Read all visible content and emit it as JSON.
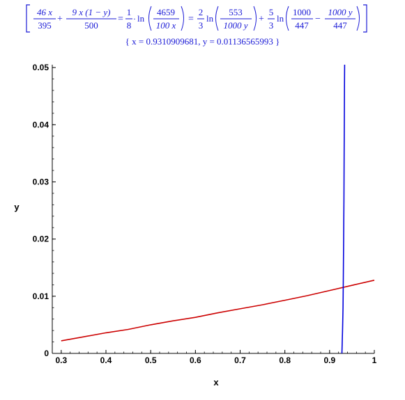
{
  "equation": {
    "lhs": {
      "term1": {
        "num": "46 x",
        "den": "395"
      },
      "plus1": "+",
      "term2": {
        "num": "9 x (1 − y)",
        "den": "500"
      }
    },
    "eq1": "=",
    "mid": {
      "num": "1",
      "den": "8",
      "dot": "·",
      "ln": "ln",
      "arg_num": "4659",
      "arg_den": "100 x"
    },
    "eq2": "=",
    "rhs": {
      "c1": {
        "num": "2",
        "den": "3"
      },
      "ln1": "ln",
      "arg1": {
        "num": "553",
        "den": "1000 y"
      },
      "plus": "+",
      "c2": {
        "num": "5",
        "den": "3"
      },
      "ln2": "ln",
      "arg2a": {
        "num": "1000",
        "den": "447"
      },
      "minus": "−",
      "arg2b": {
        "num": "1000 y",
        "den": "447"
      }
    }
  },
  "solution_text": "{ x = 0.9310909681, y = 0.01136565993 }",
  "chart_data": {
    "type": "line",
    "xlabel": "x",
    "ylabel": "y",
    "xlim": [
      0.28,
      1.0
    ],
    "ylim": [
      0,
      0.0505
    ],
    "x_ticks": [
      0.3,
      0.4,
      0.5,
      0.6,
      0.7,
      0.8,
      0.9,
      1
    ],
    "x_tick_labels": [
      "0.3",
      "0.4",
      "0.5",
      "0.6",
      "0.7",
      "0.8",
      "0.9",
      "1"
    ],
    "y_ticks": [
      0,
      0.01,
      0.02,
      0.03,
      0.04,
      0.05
    ],
    "y_tick_labels": [
      "0",
      "0.01",
      "0.02",
      "0.03",
      "0.04",
      "0.05"
    ],
    "grid": false,
    "series": [
      {
        "color": "#cc0000",
        "x": [
          0.3,
          0.35,
          0.4,
          0.45,
          0.5,
          0.55,
          0.6,
          0.65,
          0.7,
          0.75,
          0.8,
          0.85,
          0.9,
          0.95,
          1.0
        ],
        "y": [
          0.0022,
          0.0029,
          0.0036,
          0.0042,
          0.005,
          0.0057,
          0.0063,
          0.0071,
          0.0078,
          0.0085,
          0.0093,
          0.0101,
          0.011,
          0.0119,
          0.0128
        ]
      },
      {
        "color": "#0000dd",
        "x": [
          0.9275,
          0.929,
          0.93,
          0.9305,
          0.931,
          0.9315,
          0.932,
          0.9325,
          0.933,
          0.9333,
          0.9336
        ],
        "y": [
          0.0,
          0.004,
          0.008,
          0.0115,
          0.016,
          0.02,
          0.027,
          0.035,
          0.042,
          0.047,
          0.0505
        ]
      }
    ]
  }
}
